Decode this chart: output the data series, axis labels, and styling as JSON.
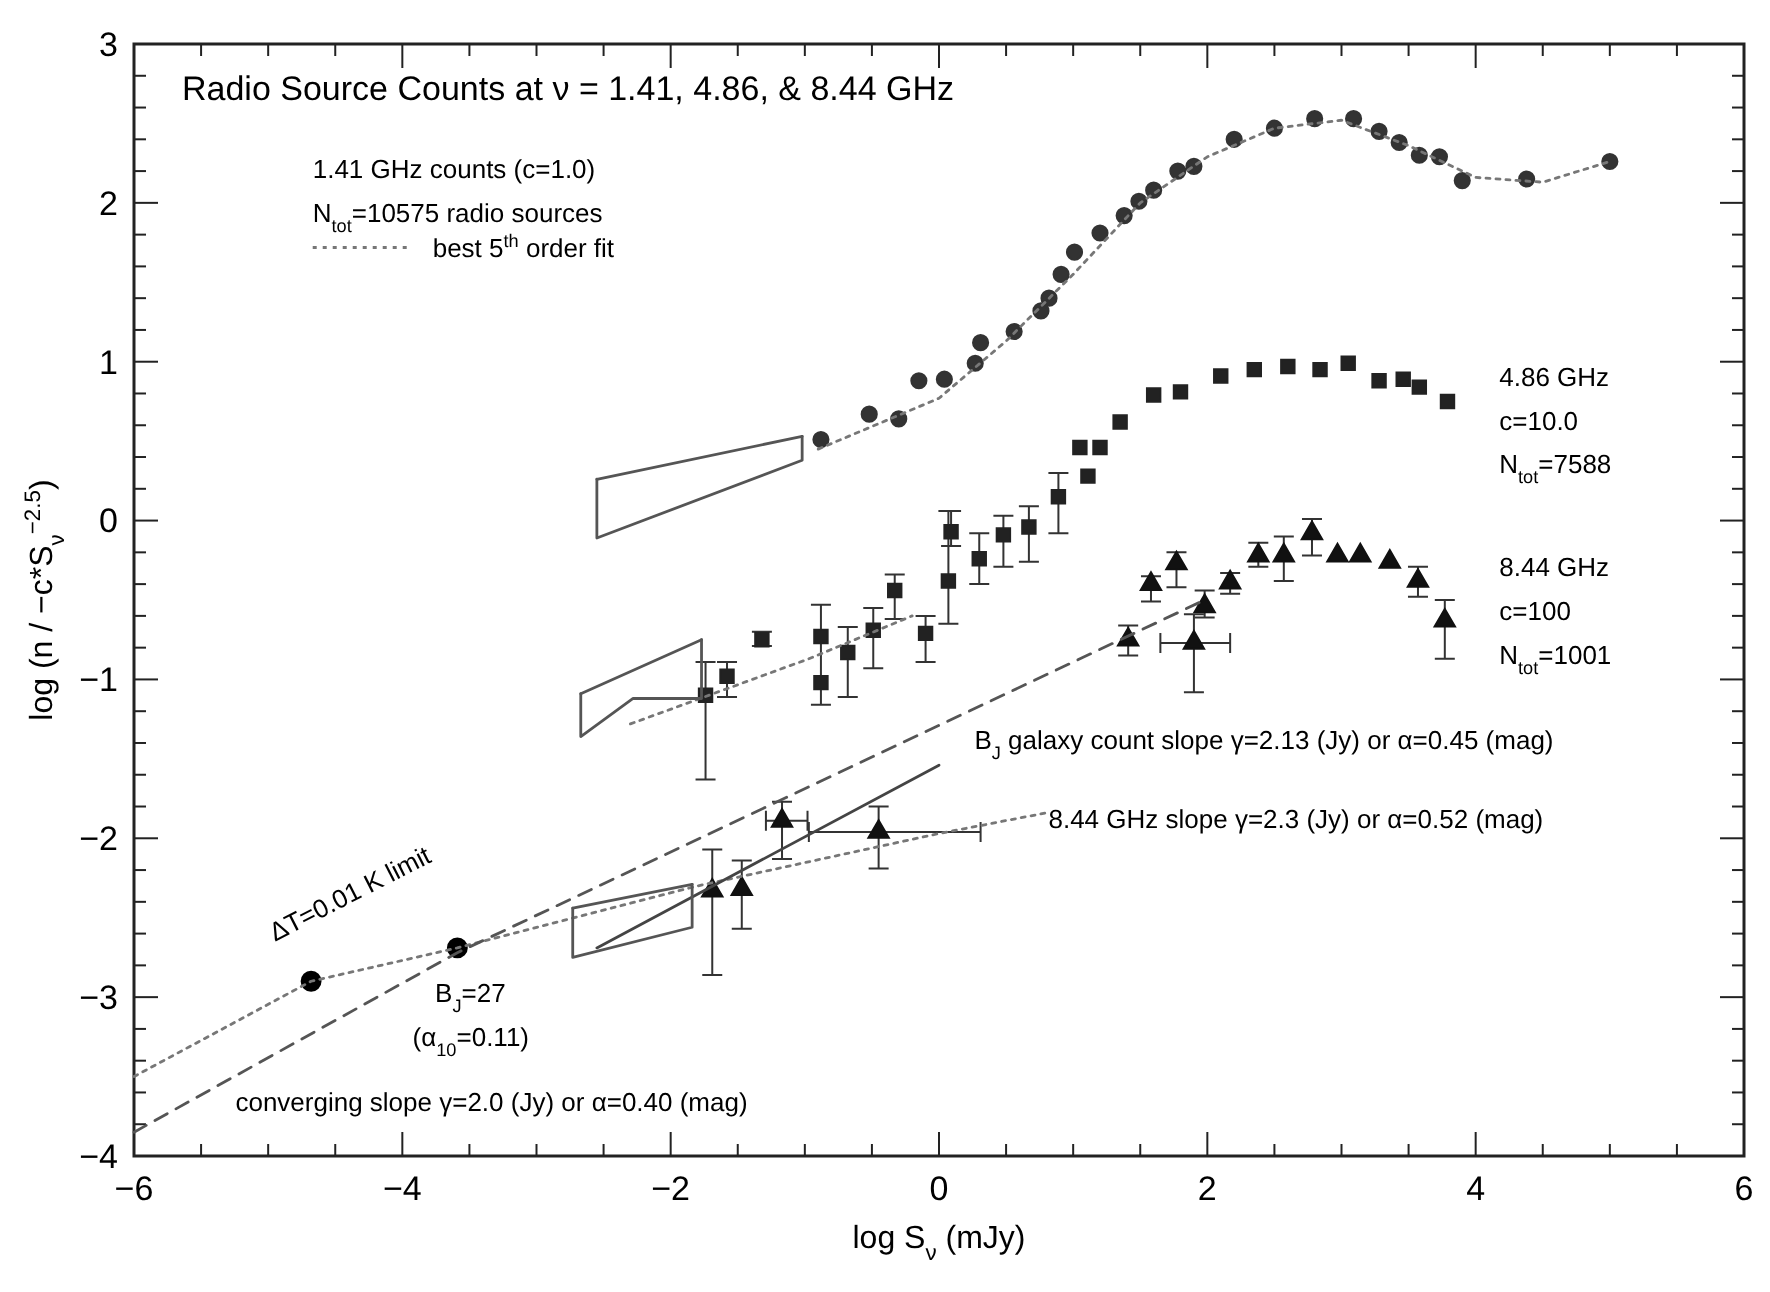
{
  "chart_data": {
    "type": "scatter",
    "title": "Radio Source Counts at ν = 1.41, 4.86, & 8.44 GHz",
    "xlabel": "log S$_{ν}$ (mJy)",
    "ylabel": "log (n / −c*S$_{ν}$$^{−2.5}$)",
    "xlim": [
      -6,
      6
    ],
    "ylim": [
      -4,
      3
    ],
    "xticks": [
      -6,
      {
        "value": -5.5,
        "label": null
      },
      {
        "value": -5,
        "label": null
      },
      {
        "value": -4.5,
        "label": null
      },
      -4,
      {
        "value": -3.5,
        "label": null
      },
      {
        "value": -3,
        "label": null
      },
      {
        "value": -2.5,
        "label": null
      },
      -2,
      {
        "value": -1.5,
        "label": null
      },
      {
        "value": -1,
        "label": null
      },
      {
        "value": -0.5,
        "label": null
      },
      0,
      {
        "value": 0.5,
        "label": null
      },
      {
        "value": 1,
        "label": null
      },
      {
        "value": 1.5,
        "label": null
      },
      2,
      {
        "value": 2.5,
        "label": null
      },
      {
        "value": 3,
        "label": null
      },
      {
        "value": 3.5,
        "label": null
      },
      4,
      {
        "value": 4.5,
        "label": null
      },
      {
        "value": 5,
        "label": null
      },
      {
        "value": 5.5,
        "label": null
      },
      6
    ],
    "yticks": [
      -4,
      {
        "value": -3.8,
        "label": null
      },
      {
        "value": -3.6,
        "label": null
      },
      {
        "value": -3.4,
        "label": null
      },
      {
        "value": -3.2,
        "label": null
      },
      -3,
      {
        "value": -2.8,
        "label": null
      },
      {
        "value": -2.6,
        "label": null
      },
      {
        "value": -2.4,
        "label": null
      },
      {
        "value": -2.2,
        "label": null
      },
      -2,
      {
        "value": -1.8,
        "label": null
      },
      {
        "value": -1.6,
        "label": null
      },
      {
        "value": -1.4,
        "label": null
      },
      {
        "value": -1.2,
        "label": null
      },
      -1,
      {
        "value": -0.8,
        "label": null
      },
      {
        "value": -0.6,
        "label": null
      },
      {
        "value": -0.4,
        "label": null
      },
      {
        "value": -0.2,
        "label": null
      },
      0,
      {
        "value": 0.2,
        "label": null
      },
      {
        "value": 0.4,
        "label": null
      },
      {
        "value": 0.6,
        "label": null
      },
      {
        "value": 0.8,
        "label": null
      },
      1,
      {
        "value": 1.2,
        "label": null
      },
      {
        "value": 1.4,
        "label": null
      },
      {
        "value": 1.6,
        "label": null
      },
      {
        "value": 1.8,
        "label": null
      },
      2,
      {
        "value": 2.2,
        "label": null
      },
      {
        "value": 2.4,
        "label": null
      },
      {
        "value": 2.6,
        "label": null
      },
      {
        "value": 2.8,
        "label": null
      },
      3
    ],
    "legend": "top left",
    "annotations": [
      "1.41 GHz counts (c=1.0)",
      "N$_{tot}$=10575 radio sources",
      "4.86 GHz",
      "c=10.0",
      "N$_{tot}$=7588",
      "8.44 GHz",
      "c=100",
      "N$_{tot}$=1001",
      "B$_{J}$ galaxy count slope γ=2.13 (Jy) or α=0.45 (mag)",
      "8.44 GHz slope γ=2.3 (Jy) or α=0.52 (mag)",
      "converging slope γ=2.0 (Jy) or α=0.40 (mag)",
      "B$_{J}$=27",
      "(α$_{10}$=0.11)",
      "ΔT=0.01 K limit"
    ],
    "series": [
      {
        "marker": "circle",
        "color": "#333333",
        "x": [
          -0.88,
          -0.52,
          -0.3,
          -0.15,
          0.04,
          0.27,
          0.31,
          0.56,
          0.76,
          0.82,
          0.91,
          1.01,
          1.2,
          1.38,
          1.49,
          1.6,
          1.78,
          1.9,
          2.2,
          2.5,
          2.8,
          3.09,
          3.28,
          3.43,
          3.58,
          3.73,
          3.9,
          4.38,
          5.0
        ],
        "values": [
          0.51,
          0.67,
          0.64,
          0.88,
          0.89,
          0.99,
          1.12,
          1.19,
          1.32,
          1.4,
          1.55,
          1.69,
          1.81,
          1.92,
          2.01,
          2.08,
          2.2,
          2.23,
          2.4,
          2.47,
          2.53,
          2.53,
          2.45,
          2.38,
          2.3,
          2.29,
          2.14,
          2.15,
          2.26
        ]
      },
      {
        "marker": "square",
        "color": "#222222",
        "x": [
          -1.74,
          -1.58,
          -1.32,
          -0.88,
          -0.88,
          -0.68,
          -0.49,
          -0.33,
          -0.1,
          0.07,
          0.09,
          0.3,
          0.48,
          0.67,
          0.89,
          1.05,
          1.11,
          1.2,
          1.35,
          1.6,
          1.8,
          2.1,
          2.35,
          2.6,
          2.84,
          3.05,
          3.28,
          3.46,
          3.58,
          3.79
        ],
        "values": [
          -1.1,
          -0.98,
          -0.75,
          -0.73,
          -1.02,
          -0.83,
          -0.69,
          -0.44,
          -0.71,
          -0.38,
          -0.07,
          -0.24,
          -0.09,
          -0.04,
          0.15,
          0.46,
          0.28,
          0.46,
          0.62,
          0.79,
          0.81,
          0.91,
          0.95,
          0.97,
          0.95,
          0.99,
          0.88,
          0.89,
          0.84,
          0.75
        ],
        "errors": [
          [
            -1.63,
            -0.89
          ],
          [
            -1.11,
            -0.89
          ],
          [
            -0.79,
            -0.7
          ],
          [
            -1.16,
            -0.53
          ],
          null,
          [
            -1.11,
            -0.67
          ],
          [
            -0.93,
            -0.55
          ],
          [
            -0.62,
            -0.34
          ],
          [
            -0.89,
            -0.6
          ],
          [
            -0.65,
            0.06
          ],
          [
            -0.16,
            0.06
          ],
          [
            -0.4,
            -0.08
          ],
          [
            -0.29,
            0.03
          ],
          [
            -0.26,
            0.09
          ],
          [
            -0.08,
            0.3
          ],
          null,
          null,
          null,
          null,
          null,
          null,
          null,
          null,
          null,
          null,
          null,
          null,
          null,
          null,
          null
        ]
      },
      {
        "marker": "triangle",
        "color": "#111111",
        "x": [
          1.41,
          1.58,
          1.77,
          1.98,
          2.17,
          2.38,
          2.57,
          2.78,
          2.97,
          3.14,
          3.36,
          3.57,
          3.77,
          1.9,
          -1.17,
          -0.45,
          -1.47,
          -1.69
        ],
        "values": [
          -0.75,
          -0.4,
          -0.27,
          -0.54,
          -0.39,
          -0.22,
          -0.22,
          -0.08,
          -0.22,
          -0.22,
          -0.26,
          -0.38,
          -0.63,
          -0.77,
          -1.89,
          -1.96,
          -2.32,
          -2.33
        ],
        "errors": [
          [
            -0.85,
            -0.66
          ],
          [
            -0.51,
            -0.35
          ],
          [
            -0.42,
            -0.2
          ],
          [
            -0.61,
            -0.44
          ],
          [
            -0.46,
            -0.33
          ],
          [
            -0.29,
            -0.14
          ],
          [
            -0.38,
            -0.1
          ],
          [
            -0.22,
            0.01
          ],
          null,
          null,
          null,
          [
            -0.48,
            -0.29
          ],
          [
            -0.87,
            -0.5
          ],
          [
            -1.08,
            -0.59
          ],
          [
            -2.13,
            -1.77
          ],
          [
            -2.19,
            -1.8
          ],
          [
            -2.57,
            -2.14
          ],
          [
            -2.86,
            -2.07
          ]
        ],
        "xerrors": [
          null,
          null,
          null,
          null,
          null,
          null,
          null,
          null,
          null,
          null,
          null,
          null,
          null,
          [
            1.65,
            2.17
          ],
          [
            -1.29,
            -0.98
          ],
          [
            -0.97,
            0.31
          ],
          null,
          null
        ]
      },
      {
        "marker": "circle",
        "color": "#000000",
        "x": [
          -4.68,
          -3.59
        ],
        "values": [
          -2.9,
          -2.69
        ]
      },
      {
        "type": "line",
        "name": "best 5$^{th}$ order fit",
        "line_style": "dotted",
        "color": "#777777",
        "x": [
          -0.9,
          0,
          0.5,
          1,
          1.5,
          2,
          2.5,
          3,
          3.5,
          4,
          4.5,
          5
        ],
        "values": [
          0.45,
          0.77,
          1.13,
          1.55,
          2.0,
          2.29,
          2.47,
          2.52,
          2.36,
          2.16,
          2.13,
          2.26
        ]
      },
      {
        "type": "line",
        "line_style": "dotted",
        "color": "#777777",
        "x": [
          -2.3,
          -0.97,
          -0.2
        ],
        "values": [
          -1.28,
          -0.87,
          -0.6
        ]
      },
      {
        "type": "line",
        "line_style": "dotted",
        "color": "#777777",
        "x": [
          -6,
          -4.68,
          -3.59,
          -1.8,
          0,
          0.8
        ],
        "values": [
          -3.5,
          -2.9,
          -2.69,
          -2.3,
          -1.97,
          -1.84
        ]
      },
      {
        "type": "line",
        "line_style": "dashed",
        "color": "#555555",
        "x": [
          -6,
          -3.59,
          1.98
        ],
        "values": [
          -3.85,
          -2.72,
          -0.5
        ]
      },
      {
        "type": "line",
        "line_style": "solid",
        "color": "#444444",
        "x": [
          -2.55,
          0.0
        ],
        "values": [
          -2.69,
          -1.54
        ]
      },
      {
        "type": "line",
        "line_style": "solid",
        "color": "#555555",
        "x": [
          -2.55,
          -2.55,
          -1.02,
          -1.02
        ],
        "values": [
          0.26,
          -0.11,
          0.38,
          0.53
        ]
      },
      {
        "type": "line",
        "line_style": "solid",
        "color": "#555555",
        "x": [
          -2.55,
          -1.02
        ],
        "values": [
          0.26,
          0.53
        ]
      },
      {
        "type": "line",
        "line_style": "solid",
        "color": "#555555",
        "x": [
          -2.67,
          -2.67,
          -2.28,
          -1.77,
          -1.77
        ],
        "values": [
          -1.09,
          -1.36,
          -1.12,
          -1.12,
          -0.75
        ]
      },
      {
        "type": "line",
        "line_style": "solid",
        "color": "#555555",
        "x": [
          -2.67,
          -1.77
        ],
        "values": [
          -1.09,
          -0.75
        ]
      },
      {
        "type": "line",
        "line_style": "solid",
        "color": "#555555",
        "x": [
          -2.73,
          -2.73,
          -1.84,
          -1.84
        ],
        "values": [
          -2.44,
          -2.75,
          -2.56,
          -2.29
        ]
      },
      {
        "type": "line",
        "line_style": "solid",
        "color": "#555555",
        "x": [
          -2.73,
          -1.84
        ],
        "values": [
          -2.44,
          -2.29
        ]
      }
    ]
  }
}
